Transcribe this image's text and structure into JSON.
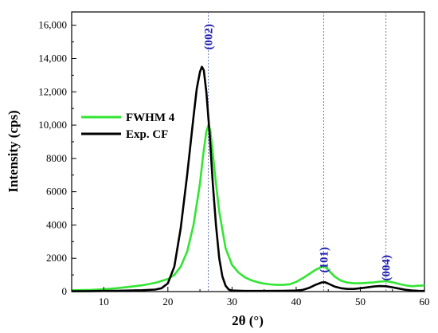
{
  "chart_data": {
    "type": "line",
    "xlabel": "2θ (°)",
    "ylabel": "Intensity (cps)",
    "xlim": [
      5,
      60
    ],
    "ylim": [
      0,
      16800
    ],
    "x_ticks": [
      10,
      20,
      30,
      40,
      50,
      60
    ],
    "x_tick_labels": [
      "10",
      "20",
      "30",
      "40",
      "50",
      "60"
    ],
    "y_ticks": [
      0,
      2000,
      4000,
      6000,
      8000,
      10000,
      12000,
      14000,
      16000
    ],
    "y_tick_labels": [
      "0",
      "2000",
      "4000",
      "6000",
      "8000",
      "10,000",
      "12,000",
      "14,000",
      "16,000"
    ],
    "grid": false,
    "legend_position": "center-left",
    "peak_lines": [
      {
        "x": 26.3,
        "label": "(002)"
      },
      {
        "x": 44.3,
        "label": "(101)"
      },
      {
        "x": 54.0,
        "label": "(004)"
      }
    ],
    "peak_label_color": "#1f1fb4",
    "series": [
      {
        "name": "FWHM 4",
        "color": "#33e533",
        "x": [
          5,
          8,
          10,
          12,
          14,
          16,
          18,
          20,
          21,
          22,
          23,
          24,
          25,
          25.5,
          26,
          26.3,
          26.6,
          27,
          27.5,
          28,
          29,
          30,
          31,
          32,
          33,
          34,
          35,
          36,
          37,
          38,
          39,
          40,
          41,
          42,
          43,
          44,
          44.5,
          45,
          46,
          47,
          48,
          49,
          50,
          51,
          52,
          53,
          54,
          55,
          56,
          57,
          58,
          59,
          60
        ],
        "y": [
          80,
          100,
          140,
          200,
          280,
          380,
          520,
          750,
          1000,
          1500,
          2400,
          4000,
          6500,
          8200,
          9600,
          10000,
          9700,
          8300,
          6500,
          4800,
          2600,
          1600,
          1150,
          850,
          680,
          560,
          480,
          430,
          400,
          400,
          440,
          580,
          800,
          1050,
          1300,
          1500,
          1480,
          1300,
          900,
          650,
          540,
          500,
          500,
          520,
          550,
          600,
          620,
          560,
          460,
          380,
          320,
          350,
          370
        ]
      },
      {
        "name": "Exp. CF",
        "color": "#000000",
        "x": [
          5,
          8,
          10,
          12,
          14,
          16,
          18,
          19,
          20,
          21,
          22,
          23,
          24,
          24.5,
          25,
          25.3,
          25.6,
          26,
          26.5,
          27,
          27.5,
          28,
          28.5,
          29,
          29.5,
          30,
          32,
          35,
          38,
          40,
          41,
          42,
          43,
          44,
          44.5,
          45,
          46,
          47,
          48,
          49,
          50,
          51,
          52,
          53,
          54,
          55,
          56,
          57,
          58,
          59,
          60
        ],
        "y": [
          20,
          30,
          40,
          50,
          60,
          80,
          120,
          200,
          500,
          1500,
          3800,
          7000,
          10500,
          12200,
          13200,
          13500,
          13300,
          12000,
          9500,
          6500,
          4000,
          2000,
          900,
          350,
          120,
          60,
          40,
          40,
          50,
          60,
          100,
          220,
          400,
          550,
          560,
          480,
          300,
          200,
          160,
          160,
          200,
          250,
          300,
          330,
          320,
          260,
          180,
          110,
          70,
          50,
          40
        ]
      }
    ]
  }
}
